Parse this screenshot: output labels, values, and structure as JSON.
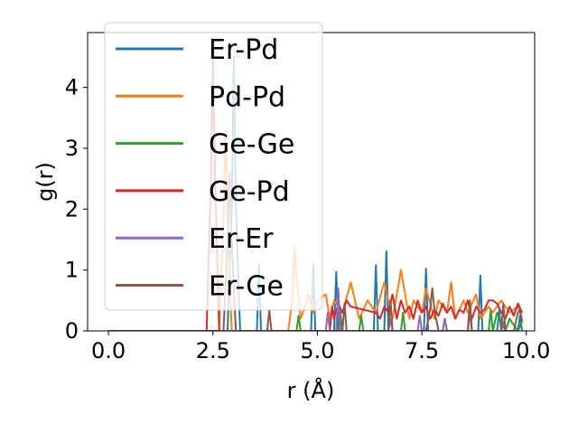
{
  "chart_data": {
    "type": "line",
    "xlabel": "r (Å)",
    "ylabel": "g(r)",
    "xlim": [
      -0.5,
      10.2
    ],
    "ylim": [
      0,
      4.9
    ],
    "xticks": [
      0.0,
      2.5,
      5.0,
      7.5,
      10.0
    ],
    "xtick_labels": [
      "0.0",
      "2.5",
      "5.0",
      "7.5",
      "10.0"
    ],
    "yticks": [
      0,
      1,
      2,
      3,
      4
    ],
    "ytick_labels": [
      "0",
      "1",
      "2",
      "3",
      "4"
    ],
    "grid": false,
    "legend_position": "upper-left",
    "series": [
      {
        "name": "Er-Pd",
        "color": "#1f77b4",
        "x": [
          0.0,
          2.85,
          2.95,
          3.0,
          3.05,
          3.15,
          3.55,
          3.6,
          3.65,
          4.85,
          4.9,
          4.95,
          5.4,
          5.45,
          5.5,
          6.35,
          6.4,
          6.45,
          6.6,
          6.65,
          6.7,
          7.55,
          7.6,
          7.65,
          8.85,
          8.9,
          8.95,
          9.3,
          9.35,
          9.4,
          9.8,
          9.85,
          9.9
        ],
        "y": [
          0,
          0,
          2.0,
          4.5,
          2.0,
          0,
          0,
          1.1,
          0,
          0,
          1.1,
          0,
          0,
          0.97,
          0,
          0,
          1.08,
          0,
          0,
          1.31,
          0,
          0,
          1.02,
          0,
          0,
          0.91,
          0,
          0,
          0.33,
          0,
          0,
          0.25,
          0
        ]
      },
      {
        "name": "Pd-Pd",
        "color": "#ff7f0e",
        "x": [
          0.0,
          2.65,
          2.75,
          2.8,
          2.85,
          2.95,
          4.3,
          4.4,
          4.45,
          4.5,
          4.6,
          4.7,
          4.8,
          4.9,
          5.0,
          5.2,
          5.3,
          5.4,
          5.6,
          5.8,
          6.0,
          6.2,
          6.4,
          6.6,
          6.8,
          7.0,
          7.2,
          7.3,
          7.5,
          7.6,
          7.8,
          7.9,
          8.1,
          8.2,
          8.3,
          8.5,
          8.6,
          8.8,
          8.9,
          9.1,
          9.2,
          9.4,
          9.6,
          9.8,
          9.9
        ],
        "y": [
          0,
          0,
          1.8,
          3.3,
          1.8,
          0,
          0,
          0.5,
          1.4,
          0.9,
          0.2,
          0.4,
          0.6,
          0.3,
          0.5,
          0.6,
          0.2,
          0.5,
          0.3,
          0.8,
          0.2,
          0.5,
          0.3,
          0.8,
          0.2,
          1.0,
          0.2,
          0.5,
          0.3,
          0.7,
          0.2,
          0.5,
          0.3,
          0.8,
          0.2,
          0.5,
          0.3,
          0.6,
          0.2,
          0.4,
          0.3,
          0.5,
          0.3,
          0.4,
          0.2
        ]
      },
      {
        "name": "Ge-Ge",
        "color": "#2ca02c",
        "x": [
          0.0,
          4.5,
          4.55,
          4.6,
          5.5,
          5.55,
          5.6,
          6.0,
          6.05,
          6.1,
          7.0,
          7.05,
          7.1,
          8.0,
          8.05,
          8.1,
          9.1,
          9.15,
          9.2,
          9.3,
          9.5,
          9.6,
          9.8,
          9.9
        ],
        "y": [
          0,
          0,
          0.25,
          0,
          0,
          0.3,
          0,
          0,
          0.25,
          0,
          0,
          0.3,
          0,
          0,
          0.2,
          0,
          0,
          0.35,
          0,
          0.3,
          0,
          0.2,
          0,
          0.15
        ]
      },
      {
        "name": "Ge-Pd",
        "color": "#d62728",
        "x": [
          0.0,
          2.35,
          2.45,
          2.5,
          2.55,
          2.65,
          5.3,
          5.35,
          5.4,
          5.5,
          5.6,
          5.7,
          5.8,
          6.4,
          6.5,
          6.6,
          6.7,
          6.8,
          6.9,
          7.0,
          7.1,
          7.2,
          7.3,
          7.4,
          7.5,
          7.6,
          7.7,
          7.8,
          7.9,
          8.0,
          8.1,
          8.2,
          8.3,
          8.4,
          8.5,
          8.6,
          8.7,
          8.8,
          8.9,
          9.0,
          9.1,
          9.2,
          9.3,
          9.4,
          9.5,
          9.6,
          9.7,
          9.8,
          9.9
        ],
        "y": [
          0,
          0,
          2.5,
          4.45,
          2.5,
          0,
          0,
          0.4,
          0.2,
          0.45,
          0.3,
          0.5,
          0.4,
          0.3,
          0.2,
          0.4,
          0.3,
          0.6,
          0.2,
          0.5,
          0.3,
          0.4,
          0.2,
          0.5,
          0.3,
          0.4,
          0.2,
          0.35,
          0.25,
          0.45,
          0.3,
          0.4,
          0.2,
          0.35,
          0.3,
          0.5,
          0.2,
          0.4,
          0.3,
          0.35,
          0.5,
          0.5,
          0.45,
          0.3,
          0.2,
          0.4,
          0.25,
          0.45,
          0.3
        ]
      },
      {
        "name": "Er-Er",
        "color": "#9467bd",
        "x": [
          0.0,
          5.2,
          5.25,
          5.3,
          5.45,
          5.5,
          5.55,
          6.7,
          6.75,
          6.8,
          7.4,
          7.45,
          7.5,
          8.0,
          8.05,
          8.1,
          8.6,
          8.65,
          8.7,
          9.4,
          9.45,
          9.5
        ],
        "y": [
          0,
          0,
          0.3,
          0,
          0,
          0.7,
          0,
          0,
          0.2,
          0,
          0,
          0.25,
          0,
          0,
          0.2,
          0,
          0,
          0.3,
          0,
          0,
          0.15,
          0
        ]
      },
      {
        "name": "Er-Ge",
        "color": "#8c564b",
        "x": [
          0.0,
          2.75,
          2.85,
          2.9,
          2.95,
          3.05,
          3.8,
          3.85,
          3.9,
          5.6,
          5.65,
          5.7,
          6.7,
          6.75,
          6.8,
          7.6,
          7.7,
          7.75,
          7.8,
          7.9,
          8.6,
          8.65,
          8.7,
          9.4,
          9.45,
          9.5,
          9.7,
          9.8,
          9.85,
          9.9
        ],
        "y": [
          0,
          0,
          1.4,
          2.6,
          1.4,
          0,
          0,
          0.35,
          0,
          0,
          0.45,
          0,
          0,
          0.5,
          0,
          0,
          0.35,
          0.7,
          0.35,
          0,
          0,
          0.5,
          0,
          0,
          0.45,
          0,
          0,
          0.3,
          0.35,
          0.15
        ]
      }
    ]
  }
}
